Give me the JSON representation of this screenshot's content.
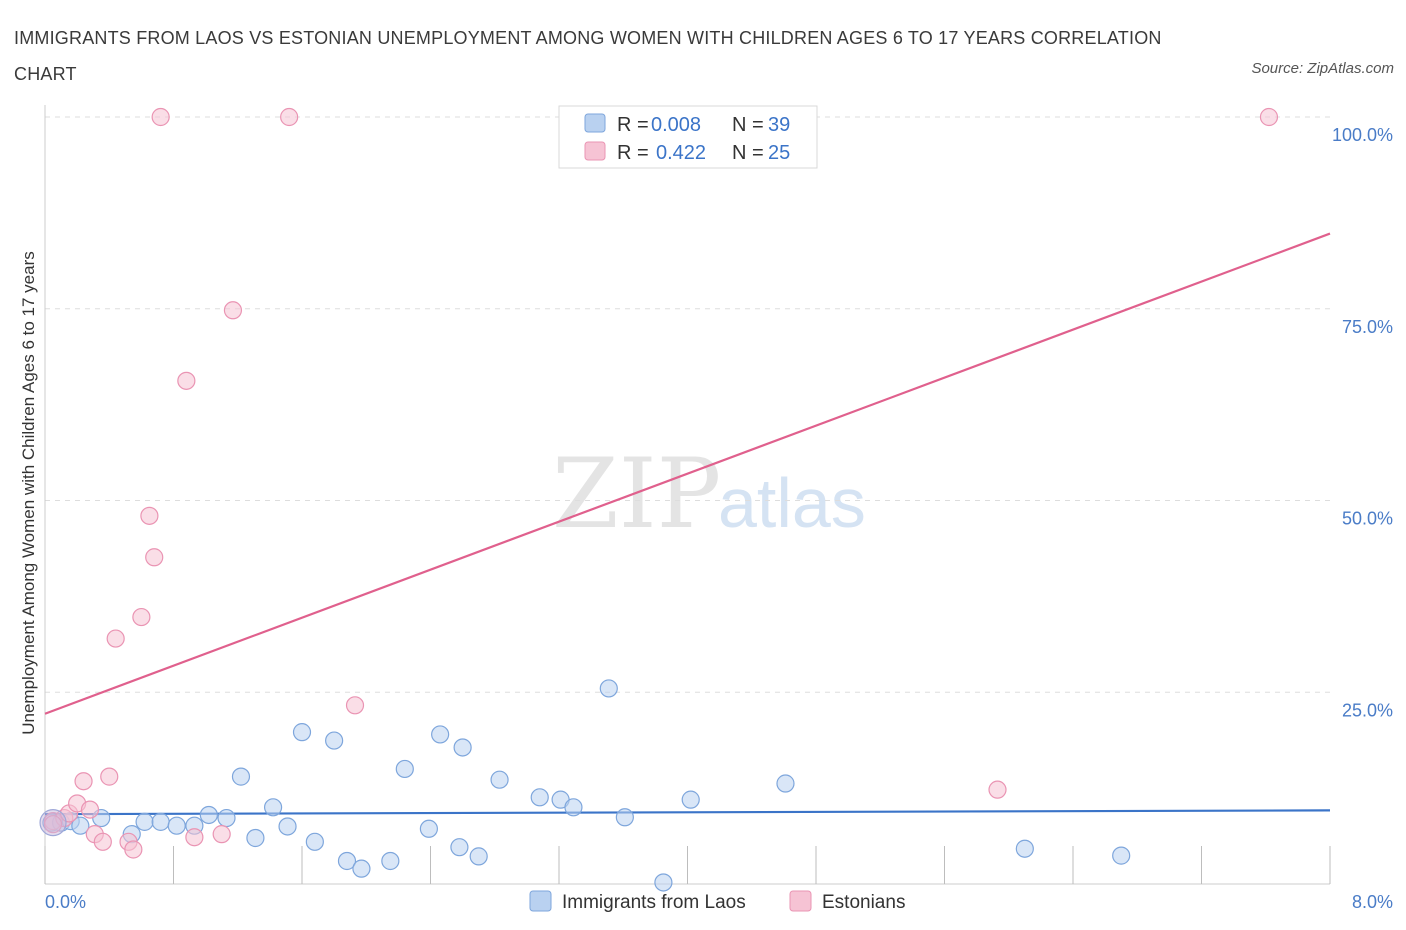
{
  "title": "IMMIGRANTS FROM LAOS VS ESTONIAN UNEMPLOYMENT AMONG WOMEN WITH CHILDREN AGES 6 TO 17 YEARS CORRELATION CHART",
  "source": "Source: ZipAtlas.com",
  "watermark": {
    "zip": "ZIP",
    "atlas": "atlas"
  },
  "colors": {
    "blue_fill": "#b9d1f0",
    "blue_stroke": "#7ea6dc",
    "blue_line": "#3b74c8",
    "pink_fill": "#f6c3d4",
    "pink_stroke": "#ea94b3",
    "pink_line": "#e0608d",
    "axis_text": "#4a7cc7",
    "grid": "#dddddd"
  },
  "legend": {
    "rows": [
      {
        "r_label": "R =",
        "r_value": "0.008",
        "n_label": "N =",
        "n_value": "39",
        "series": "blue"
      },
      {
        "r_label": "R =",
        "r_value": "0.422",
        "n_label": "N =",
        "n_value": "25",
        "series": "pink"
      }
    ]
  },
  "chart_data": {
    "type": "scatter",
    "xlabel": "",
    "ylabel": "Unemployment Among Women with Children Ages 6 to 17 years",
    "xlim": [
      0,
      8
    ],
    "ylim": [
      0,
      100
    ],
    "x_tick_labels": [
      "0.0%",
      "8.0%"
    ],
    "y_tick_labels": [
      "25.0%",
      "50.0%",
      "75.0%",
      "100.0%"
    ],
    "y_ticks": [
      25,
      50,
      75,
      100
    ],
    "x_ticks": [
      0,
      0.8,
      1.6,
      2.4,
      3.2,
      4.0,
      4.8,
      5.6,
      6.4,
      7.2,
      8.0
    ],
    "grid": true,
    "series": [
      {
        "name": "Immigrants from Laos",
        "color": "blue",
        "points": [
          [
            0.04,
            8.0
          ],
          [
            0.1,
            8.0
          ],
          [
            0.16,
            8.2
          ],
          [
            0.22,
            7.6
          ],
          [
            0.35,
            8.6
          ],
          [
            0.54,
            6.5
          ],
          [
            0.62,
            8.1
          ],
          [
            0.72,
            8.1
          ],
          [
            0.82,
            7.6
          ],
          [
            0.93,
            7.6
          ],
          [
            1.02,
            9.0
          ],
          [
            1.13,
            8.6
          ],
          [
            1.22,
            14.0
          ],
          [
            1.31,
            6.0
          ],
          [
            1.42,
            10.0
          ],
          [
            1.51,
            7.5
          ],
          [
            1.6,
            19.8
          ],
          [
            1.68,
            5.5
          ],
          [
            1.8,
            18.7
          ],
          [
            1.88,
            3.0
          ],
          [
            1.97,
            2.0
          ],
          [
            2.15,
            3.0
          ],
          [
            2.24,
            15.0
          ],
          [
            2.39,
            7.2
          ],
          [
            2.46,
            19.5
          ],
          [
            2.58,
            4.8
          ],
          [
            2.6,
            17.8
          ],
          [
            2.7,
            3.6
          ],
          [
            2.83,
            13.6
          ],
          [
            3.08,
            11.3
          ],
          [
            3.21,
            11.0
          ],
          [
            3.29,
            10.0
          ],
          [
            3.51,
            25.5
          ],
          [
            3.61,
            8.7
          ],
          [
            3.85,
            0.2
          ],
          [
            4.02,
            11.0
          ],
          [
            4.61,
            13.1
          ],
          [
            6.1,
            4.6
          ],
          [
            6.7,
            3.7
          ]
        ],
        "trend": {
          "x": [
            0,
            8
          ],
          "y": [
            9.1,
            9.6
          ]
        }
      },
      {
        "name": "Estonians",
        "color": "pink",
        "points": [
          [
            0.05,
            8.2
          ],
          [
            0.12,
            8.6
          ],
          [
            0.15,
            9.2
          ],
          [
            0.2,
            10.5
          ],
          [
            0.24,
            13.4
          ],
          [
            0.28,
            9.7
          ],
          [
            0.31,
            6.5
          ],
          [
            0.36,
            5.5
          ],
          [
            0.4,
            14.0
          ],
          [
            0.44,
            32.0
          ],
          [
            0.52,
            5.5
          ],
          [
            0.55,
            4.5
          ],
          [
            0.6,
            34.8
          ],
          [
            0.65,
            48.0
          ],
          [
            0.68,
            42.6
          ],
          [
            0.72,
            100.0
          ],
          [
            0.88,
            65.6
          ],
          [
            0.93,
            6.1
          ],
          [
            1.1,
            6.5
          ],
          [
            1.17,
            74.8
          ],
          [
            1.52,
            100.0
          ],
          [
            1.93,
            23.3
          ],
          [
            5.93,
            12.3
          ],
          [
            7.62,
            100.0
          ],
          [
            0.05,
            7.8
          ]
        ],
        "trend": {
          "x": [
            0,
            8
          ],
          "y": [
            22.2,
            84.8
          ]
        }
      }
    ]
  },
  "bottom_legend": [
    {
      "label": "Immigrants from Laos",
      "color": "blue"
    },
    {
      "label": "Estonians",
      "color": "pink"
    }
  ]
}
